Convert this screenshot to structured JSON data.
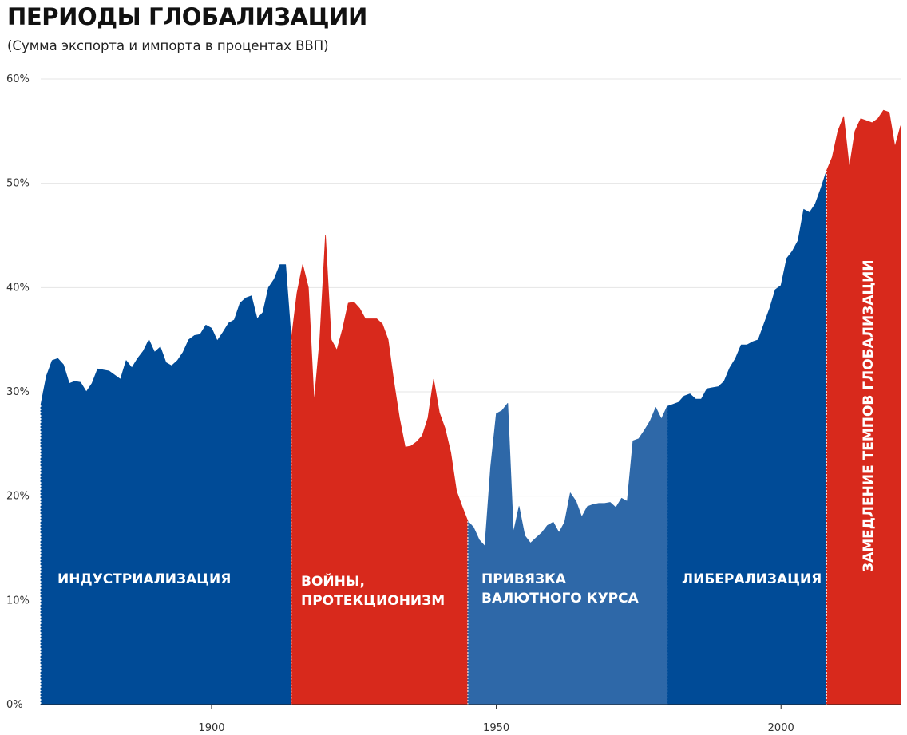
{
  "title": "ПЕРИОДЫ ГЛОБАЛИЗАЦИИ",
  "subtitle": "(Сумма экспорта и импорта в процентах ВВП)",
  "chart_data": {
    "type": "area",
    "title": "ПЕРИОДЫ ГЛОБАЛИЗАЦИИ",
    "subtitle": "(Сумма экспорта и импорта в процентах ВВП)",
    "xlabel": "",
    "ylabel": "",
    "xlim": [
      1870,
      2021
    ],
    "ylim": [
      0,
      60
    ],
    "x_ticks": [
      1900,
      1950,
      2000
    ],
    "x_tick_labels": [
      "1900",
      "1950",
      "2000"
    ],
    "y_ticks": [
      0,
      10,
      20,
      30,
      40,
      50,
      60
    ],
    "y_tick_labels": [
      "0%",
      "10%",
      "20%",
      "30%",
      "40%",
      "50%",
      "60%"
    ],
    "grid": true,
    "series": [
      {
        "name": "Сумма экспорта и импорта в процентах ВВП",
        "x": [
          1870,
          1871,
          1872,
          1873,
          1874,
          1875,
          1876,
          1877,
          1878,
          1879,
          1880,
          1881,
          1882,
          1883,
          1884,
          1885,
          1886,
          1887,
          1888,
          1889,
          1890,
          1891,
          1892,
          1893,
          1894,
          1895,
          1896,
          1897,
          1898,
          1899,
          1900,
          1901,
          1902,
          1903,
          1904,
          1905,
          1906,
          1907,
          1908,
          1909,
          1910,
          1911,
          1912,
          1913,
          1914,
          1915,
          1916,
          1917,
          1918,
          1919,
          1920,
          1921,
          1922,
          1923,
          1924,
          1925,
          1926,
          1927,
          1928,
          1929,
          1930,
          1931,
          1932,
          1933,
          1934,
          1935,
          1936,
          1937,
          1938,
          1939,
          1940,
          1941,
          1942,
          1943,
          1944,
          1945,
          1946,
          1947,
          1948,
          1949,
          1950,
          1951,
          1952,
          1953,
          1954,
          1955,
          1956,
          1957,
          1958,
          1959,
          1960,
          1961,
          1962,
          1963,
          1964,
          1965,
          1966,
          1967,
          1968,
          1969,
          1970,
          1971,
          1972,
          1973,
          1974,
          1975,
          1976,
          1977,
          1978,
          1979,
          1980,
          1981,
          1982,
          1983,
          1984,
          1985,
          1986,
          1987,
          1988,
          1989,
          1990,
          1991,
          1992,
          1993,
          1994,
          1995,
          1996,
          1997,
          1998,
          1999,
          2000,
          2001,
          2002,
          2003,
          2004,
          2005,
          2006,
          2007,
          2008,
          2009,
          2010,
          2011,
          2012,
          2013,
          2014,
          2015,
          2016,
          2017,
          2018,
          2019,
          2020,
          2021
        ],
        "values": [
          28.7,
          31.5,
          33.0,
          33.2,
          32.6,
          30.8,
          31.0,
          30.9,
          30.0,
          30.8,
          32.2,
          32.1,
          32.0,
          31.6,
          31.2,
          33.0,
          32.3,
          33.2,
          33.9,
          35.0,
          33.8,
          34.3,
          32.8,
          32.5,
          33.0,
          33.8,
          35.0,
          35.4,
          35.5,
          36.4,
          36.1,
          34.9,
          35.7,
          36.6,
          36.9,
          38.5,
          39.0,
          39.2,
          37.0,
          37.6,
          40.0,
          40.8,
          42.2,
          42.2,
          35.0,
          39.5,
          42.2,
          40.0,
          29.0,
          35.0,
          45.0,
          35.0,
          34.0,
          36.0,
          38.5,
          38.6,
          38.0,
          37.0,
          37.0,
          37.0,
          36.5,
          35.0,
          31.0,
          27.5,
          24.7,
          24.8,
          25.2,
          25.8,
          27.5,
          31.2,
          28.0,
          26.5,
          24.2,
          20.5,
          19.0,
          17.6,
          17.0,
          15.8,
          15.2,
          22.8,
          27.9,
          28.2,
          28.9,
          16.5,
          19.0,
          16.2,
          15.5,
          16.0,
          16.5,
          17.2,
          17.5,
          16.5,
          17.5,
          20.3,
          19.5,
          18.0,
          19.0,
          19.2,
          19.3,
          19.3,
          19.4,
          18.9,
          19.8,
          19.5,
          25.3,
          25.5,
          26.3,
          27.2,
          28.5,
          27.4,
          28.6,
          28.8,
          29.0,
          29.6,
          29.8,
          29.3,
          29.3,
          30.3,
          30.4,
          30.5,
          31.0,
          32.3,
          33.2,
          34.5,
          34.5,
          34.8,
          35.0,
          36.5,
          38.0,
          39.8,
          40.2,
          42.8,
          43.5,
          44.5,
          47.5,
          47.2,
          48.0,
          49.5,
          51.2,
          52.5,
          55.0,
          56.4,
          51.5,
          55.0,
          56.2,
          56.0,
          55.8,
          56.2,
          57.0,
          56.8,
          53.5,
          55.5
        ]
      }
    ],
    "periods": [
      {
        "name": "ИНДУСТРИАЛИЗАЦИЯ",
        "start": 1870,
        "end": 1914,
        "color": "#004b97"
      },
      {
        "name": "ВОЙНЫ, ПРОТЕКЦИОНИЗМ",
        "start": 1914,
        "end": 1945,
        "color": "#d8291c"
      },
      {
        "name": "ПРИВЯЗКА ВАЛЮТНОГО КУРСА",
        "start": 1945,
        "end": 1980,
        "color": "#2e68a8"
      },
      {
        "name": "ЛИБЕРАЛИЗАЦИЯ",
        "start": 1980,
        "end": 2008,
        "color": "#004b97"
      },
      {
        "name": "ЗАМЕДЛЕНИЕ ТЕМПОВ ГЛОБАЛИЗАЦИИ",
        "start": 2008,
        "end": 2021,
        "color": "#d8291c"
      }
    ],
    "period_labels": [
      {
        "lines": [
          "ИНДУСТРИАЛИЗАЦИЯ"
        ]
      },
      {
        "lines": [
          "ВОЙНЫ,",
          "ПРОТЕКЦИОНИЗМ"
        ]
      },
      {
        "lines": [
          "ПРИВЯЗКА",
          "ВАЛЮТНОГО КУРСА"
        ]
      },
      {
        "lines": [
          "ЛИБЕРАЛИЗАЦИЯ"
        ]
      },
      {
        "lines": [
          "ЗАМЕДЛЕНИЕ ТЕМПОВ ГЛОБАЛИЗАЦИИ"
        ]
      }
    ]
  }
}
